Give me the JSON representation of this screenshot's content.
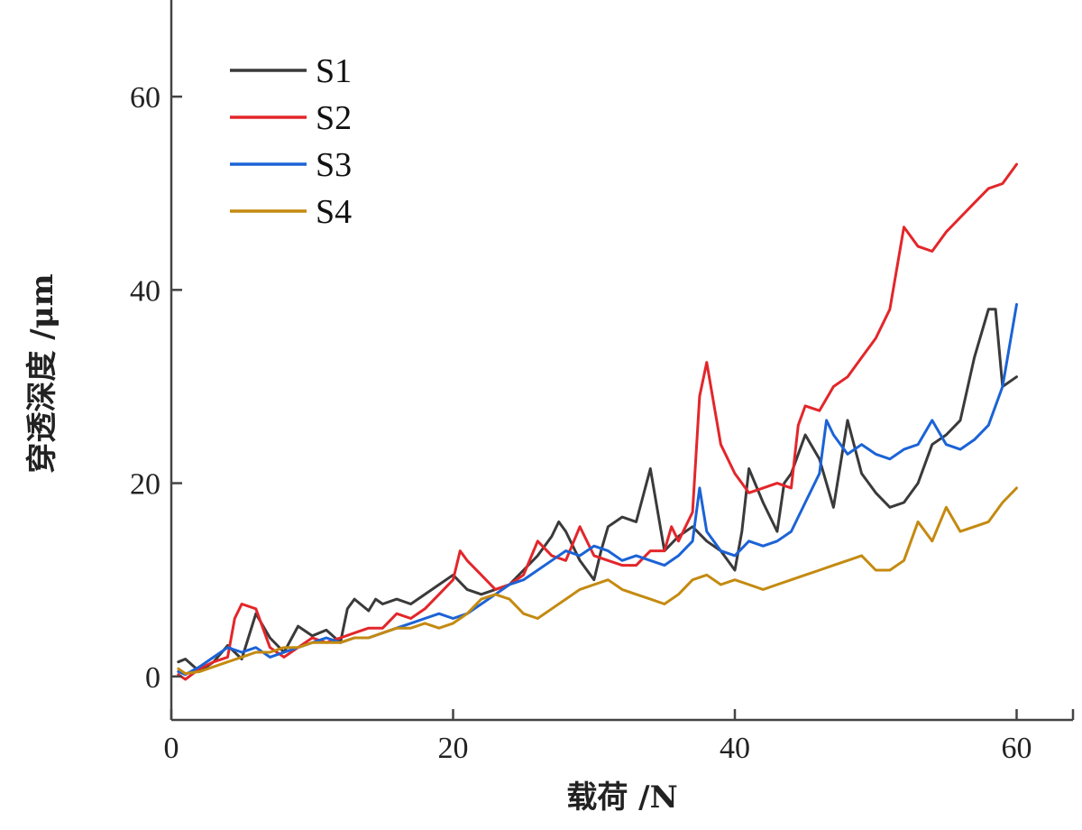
{
  "chart_data": {
    "type": "line",
    "xlabel": "载荷 /N",
    "ylabel": "穿透深度 /μm",
    "xlim": [
      0,
      64
    ],
    "ylim": [
      -4.5,
      70
    ],
    "xticks": [
      0,
      20,
      40,
      60
    ],
    "yticks": [
      0,
      20,
      40,
      60
    ],
    "legend_position": "top-left",
    "series": [
      {
        "name": "S1",
        "color": "#3a3a3a",
        "points": [
          [
            0.5,
            1.5
          ],
          [
            1,
            1.8
          ],
          [
            2,
            0.5
          ],
          [
            3,
            1.5
          ],
          [
            4,
            3.2
          ],
          [
            5,
            1.8
          ],
          [
            6,
            6.5
          ],
          [
            7,
            4
          ],
          [
            8,
            2.5
          ],
          [
            9,
            5.2
          ],
          [
            10,
            4.2
          ],
          [
            11,
            4.8
          ],
          [
            12,
            3.5
          ],
          [
            12.5,
            7
          ],
          [
            13,
            8
          ],
          [
            14,
            6.8
          ],
          [
            14.5,
            8
          ],
          [
            15,
            7.5
          ],
          [
            16,
            8
          ],
          [
            17,
            7.5
          ],
          [
            18,
            8.5
          ],
          [
            19,
            9.5
          ],
          [
            20,
            10.5
          ],
          [
            21,
            9
          ],
          [
            22,
            8.5
          ],
          [
            23,
            9
          ],
          [
            24,
            9.5
          ],
          [
            25,
            11
          ],
          [
            26,
            12.5
          ],
          [
            27,
            14.5
          ],
          [
            27.5,
            16
          ],
          [
            28,
            15
          ],
          [
            29,
            12
          ],
          [
            30,
            10
          ],
          [
            30.5,
            13
          ],
          [
            31,
            15.5
          ],
          [
            32,
            16.5
          ],
          [
            33,
            16
          ],
          [
            34,
            21.5
          ],
          [
            35,
            13
          ],
          [
            36,
            14.5
          ],
          [
            37,
            15.5
          ],
          [
            38,
            14
          ],
          [
            39,
            13
          ],
          [
            40,
            11
          ],
          [
            40.5,
            15
          ],
          [
            41,
            21.5
          ],
          [
            42,
            18
          ],
          [
            43,
            15
          ],
          [
            43.5,
            20
          ],
          [
            44,
            21
          ],
          [
            45,
            25
          ],
          [
            46,
            22.5
          ],
          [
            47,
            17.5
          ],
          [
            48,
            26.5
          ],
          [
            49,
            21
          ],
          [
            50,
            19
          ],
          [
            51,
            17.5
          ],
          [
            52,
            18
          ],
          [
            53,
            20
          ],
          [
            54,
            24
          ],
          [
            55,
            25
          ],
          [
            56,
            26.5
          ],
          [
            57,
            33
          ],
          [
            58,
            38
          ],
          [
            58.5,
            38
          ],
          [
            59,
            30
          ],
          [
            60,
            31
          ]
        ]
      },
      {
        "name": "S2",
        "color": "#e3262a",
        "points": [
          [
            0.5,
            0.2
          ],
          [
            1,
            -0.3
          ],
          [
            2,
            0.8
          ],
          [
            3,
            1.5
          ],
          [
            4,
            2
          ],
          [
            4.5,
            6
          ],
          [
            5,
            7.5
          ],
          [
            6,
            7
          ],
          [
            7,
            3
          ],
          [
            8,
            2
          ],
          [
            9,
            3
          ],
          [
            10,
            4
          ],
          [
            11,
            3.5
          ],
          [
            12,
            4
          ],
          [
            13,
            4.5
          ],
          [
            14,
            5
          ],
          [
            15,
            5
          ],
          [
            16,
            6.5
          ],
          [
            17,
            6
          ],
          [
            18,
            7
          ],
          [
            19,
            8.5
          ],
          [
            20,
            10
          ],
          [
            20.5,
            13
          ],
          [
            21,
            12
          ],
          [
            22,
            10.5
          ],
          [
            23,
            9
          ],
          [
            24,
            9.5
          ],
          [
            25,
            10.5
          ],
          [
            26,
            14
          ],
          [
            27,
            12.5
          ],
          [
            28,
            12
          ],
          [
            29,
            15.5
          ],
          [
            30,
            12.5
          ],
          [
            31,
            12
          ],
          [
            32,
            11.5
          ],
          [
            33,
            11.5
          ],
          [
            34,
            13
          ],
          [
            35,
            13
          ],
          [
            35.5,
            15.5
          ],
          [
            36,
            14
          ],
          [
            37,
            17
          ],
          [
            37.5,
            29
          ],
          [
            38,
            32.5
          ],
          [
            39,
            24
          ],
          [
            40,
            21
          ],
          [
            41,
            19
          ],
          [
            42,
            19.5
          ],
          [
            43,
            20
          ],
          [
            44,
            19.5
          ],
          [
            44.5,
            26
          ],
          [
            45,
            28
          ],
          [
            46,
            27.5
          ],
          [
            47,
            30
          ],
          [
            48,
            31
          ],
          [
            49,
            33
          ],
          [
            50,
            35
          ],
          [
            51,
            38
          ],
          [
            52,
            46.5
          ],
          [
            53,
            44.5
          ],
          [
            54,
            44
          ],
          [
            55,
            46
          ],
          [
            56,
            47.5
          ],
          [
            57,
            49
          ],
          [
            58,
            50.5
          ],
          [
            59,
            51
          ],
          [
            60,
            53
          ]
        ]
      },
      {
        "name": "S3",
        "color": "#1b63d6",
        "points": [
          [
            0.5,
            0.5
          ],
          [
            1,
            0.2
          ],
          [
            2,
            1
          ],
          [
            3,
            2
          ],
          [
            4,
            3
          ],
          [
            5,
            2.5
          ],
          [
            6,
            3
          ],
          [
            7,
            2
          ],
          [
            8,
            2.5
          ],
          [
            9,
            3
          ],
          [
            10,
            3.5
          ],
          [
            11,
            4
          ],
          [
            12,
            3.5
          ],
          [
            13,
            4
          ],
          [
            14,
            4
          ],
          [
            15,
            4.5
          ],
          [
            16,
            5
          ],
          [
            17,
            5.5
          ],
          [
            18,
            6
          ],
          [
            19,
            6.5
          ],
          [
            20,
            6
          ],
          [
            21,
            6.5
          ],
          [
            22,
            7.5
          ],
          [
            23,
            8.5
          ],
          [
            24,
            9.5
          ],
          [
            25,
            10
          ],
          [
            26,
            11
          ],
          [
            27,
            12
          ],
          [
            28,
            13
          ],
          [
            29,
            12.5
          ],
          [
            30,
            13.5
          ],
          [
            31,
            13
          ],
          [
            32,
            12
          ],
          [
            33,
            12.5
          ],
          [
            34,
            12
          ],
          [
            35,
            11.5
          ],
          [
            36,
            12.5
          ],
          [
            37,
            14
          ],
          [
            37.5,
            19.5
          ],
          [
            38,
            15
          ],
          [
            39,
            13
          ],
          [
            40,
            12.5
          ],
          [
            41,
            14
          ],
          [
            42,
            13.5
          ],
          [
            43,
            14
          ],
          [
            44,
            15
          ],
          [
            45,
            18
          ],
          [
            46,
            21
          ],
          [
            46.5,
            26.5
          ],
          [
            47,
            25
          ],
          [
            48,
            23
          ],
          [
            49,
            24
          ],
          [
            50,
            23
          ],
          [
            51,
            22.5
          ],
          [
            52,
            23.5
          ],
          [
            53,
            24
          ],
          [
            54,
            26.5
          ],
          [
            55,
            24
          ],
          [
            56,
            23.5
          ],
          [
            57,
            24.5
          ],
          [
            58,
            26
          ],
          [
            59,
            30
          ],
          [
            60,
            38.5
          ]
        ]
      },
      {
        "name": "S4",
        "color": "#c48a10",
        "points": [
          [
            0.5,
            0.8
          ],
          [
            1,
            0.3
          ],
          [
            2,
            0.5
          ],
          [
            3,
            1
          ],
          [
            4,
            1.5
          ],
          [
            5,
            2
          ],
          [
            6,
            2.5
          ],
          [
            7,
            2.5
          ],
          [
            8,
            3
          ],
          [
            9,
            3
          ],
          [
            10,
            3.5
          ],
          [
            11,
            3.5
          ],
          [
            12,
            3.5
          ],
          [
            13,
            4
          ],
          [
            14,
            4
          ],
          [
            15,
            4.5
          ],
          [
            16,
            5
          ],
          [
            17,
            5
          ],
          [
            18,
            5.5
          ],
          [
            19,
            5
          ],
          [
            20,
            5.5
          ],
          [
            21,
            6.5
          ],
          [
            22,
            8
          ],
          [
            23,
            8.5
          ],
          [
            24,
            8
          ],
          [
            25,
            6.5
          ],
          [
            26,
            6
          ],
          [
            27,
            7
          ],
          [
            28,
            8
          ],
          [
            29,
            9
          ],
          [
            30,
            9.5
          ],
          [
            31,
            10
          ],
          [
            32,
            9
          ],
          [
            33,
            8.5
          ],
          [
            34,
            8
          ],
          [
            35,
            7.5
          ],
          [
            36,
            8.5
          ],
          [
            37,
            10
          ],
          [
            38,
            10.5
          ],
          [
            39,
            9.5
          ],
          [
            40,
            10
          ],
          [
            41,
            9.5
          ],
          [
            42,
            9
          ],
          [
            43,
            9.5
          ],
          [
            44,
            10
          ],
          [
            45,
            10.5
          ],
          [
            46,
            11
          ],
          [
            47,
            11.5
          ],
          [
            48,
            12
          ],
          [
            49,
            12.5
          ],
          [
            50,
            11
          ],
          [
            51,
            11
          ],
          [
            52,
            12
          ],
          [
            53,
            16
          ],
          [
            54,
            14
          ],
          [
            55,
            17.5
          ],
          [
            56,
            15
          ],
          [
            57,
            15.5
          ],
          [
            58,
            16
          ],
          [
            59,
            18
          ],
          [
            60,
            19.5
          ]
        ]
      }
    ]
  }
}
